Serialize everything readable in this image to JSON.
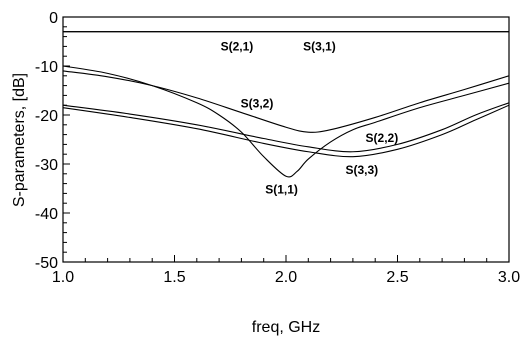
{
  "chart_data": {
    "type": "line",
    "xlabel": "freq, GHz",
    "ylabel": "S-parameters, [dB]",
    "xlim": [
      1.0,
      3.0
    ],
    "ylim": [
      -50,
      0
    ],
    "grid": false,
    "x_ticks": [
      "1.0",
      "1.5",
      "2.0",
      "2.5",
      "3.0"
    ],
    "y_ticks": [
      "0",
      "-10",
      "-20",
      "-30",
      "-40",
      "-50"
    ],
    "series": [
      {
        "name": "S(2,1)",
        "x": [
          1.0,
          1.5,
          2.0,
          2.5,
          3.0
        ],
        "y": [
          -3.0,
          -3.0,
          -3.0,
          -3.0,
          -3.0
        ]
      },
      {
        "name": "S(3,1)",
        "x": [
          1.0,
          1.5,
          2.0,
          2.5,
          3.0
        ],
        "y": [
          -3.0,
          -3.0,
          -3.0,
          -3.0,
          -3.0
        ]
      },
      {
        "name": "S(3,2)",
        "x": [
          1.0,
          1.2,
          1.4,
          1.6,
          1.8,
          2.0,
          2.1,
          2.2,
          2.4,
          2.6,
          2.8,
          3.0
        ],
        "y": [
          -11.0,
          -12.2,
          -14.0,
          -16.5,
          -19.5,
          -22.5,
          -23.5,
          -23.0,
          -20.5,
          -17.5,
          -14.8,
          -12.0
        ]
      },
      {
        "name": "S(1,1)",
        "x": [
          1.0,
          1.2,
          1.4,
          1.6,
          1.7,
          1.8,
          1.9,
          2.0,
          2.05,
          2.1,
          2.2,
          2.3,
          2.4,
          2.6,
          2.8,
          3.0
        ],
        "y": [
          -10.0,
          -11.5,
          -14.0,
          -17.5,
          -20.0,
          -23.5,
          -28.5,
          -32.5,
          -31.5,
          -29.0,
          -25.5,
          -23.0,
          -21.5,
          -18.5,
          -16.0,
          -13.5
        ]
      },
      {
        "name": "S(2,2)",
        "x": [
          1.0,
          1.3,
          1.6,
          1.9,
          2.1,
          2.3,
          2.5,
          2.7,
          2.85,
          3.0
        ],
        "y": [
          -18.0,
          -19.8,
          -22.0,
          -24.8,
          -26.5,
          -27.5,
          -26.0,
          -23.0,
          -20.0,
          -17.5
        ]
      },
      {
        "name": "S(3,3)",
        "x": [
          1.0,
          1.3,
          1.6,
          1.9,
          2.1,
          2.3,
          2.5,
          2.7,
          2.85,
          3.0
        ],
        "y": [
          -18.5,
          -20.5,
          -22.8,
          -25.8,
          -27.5,
          -28.5,
          -27.0,
          -24.0,
          -21.0,
          -18.0
        ]
      }
    ]
  }
}
